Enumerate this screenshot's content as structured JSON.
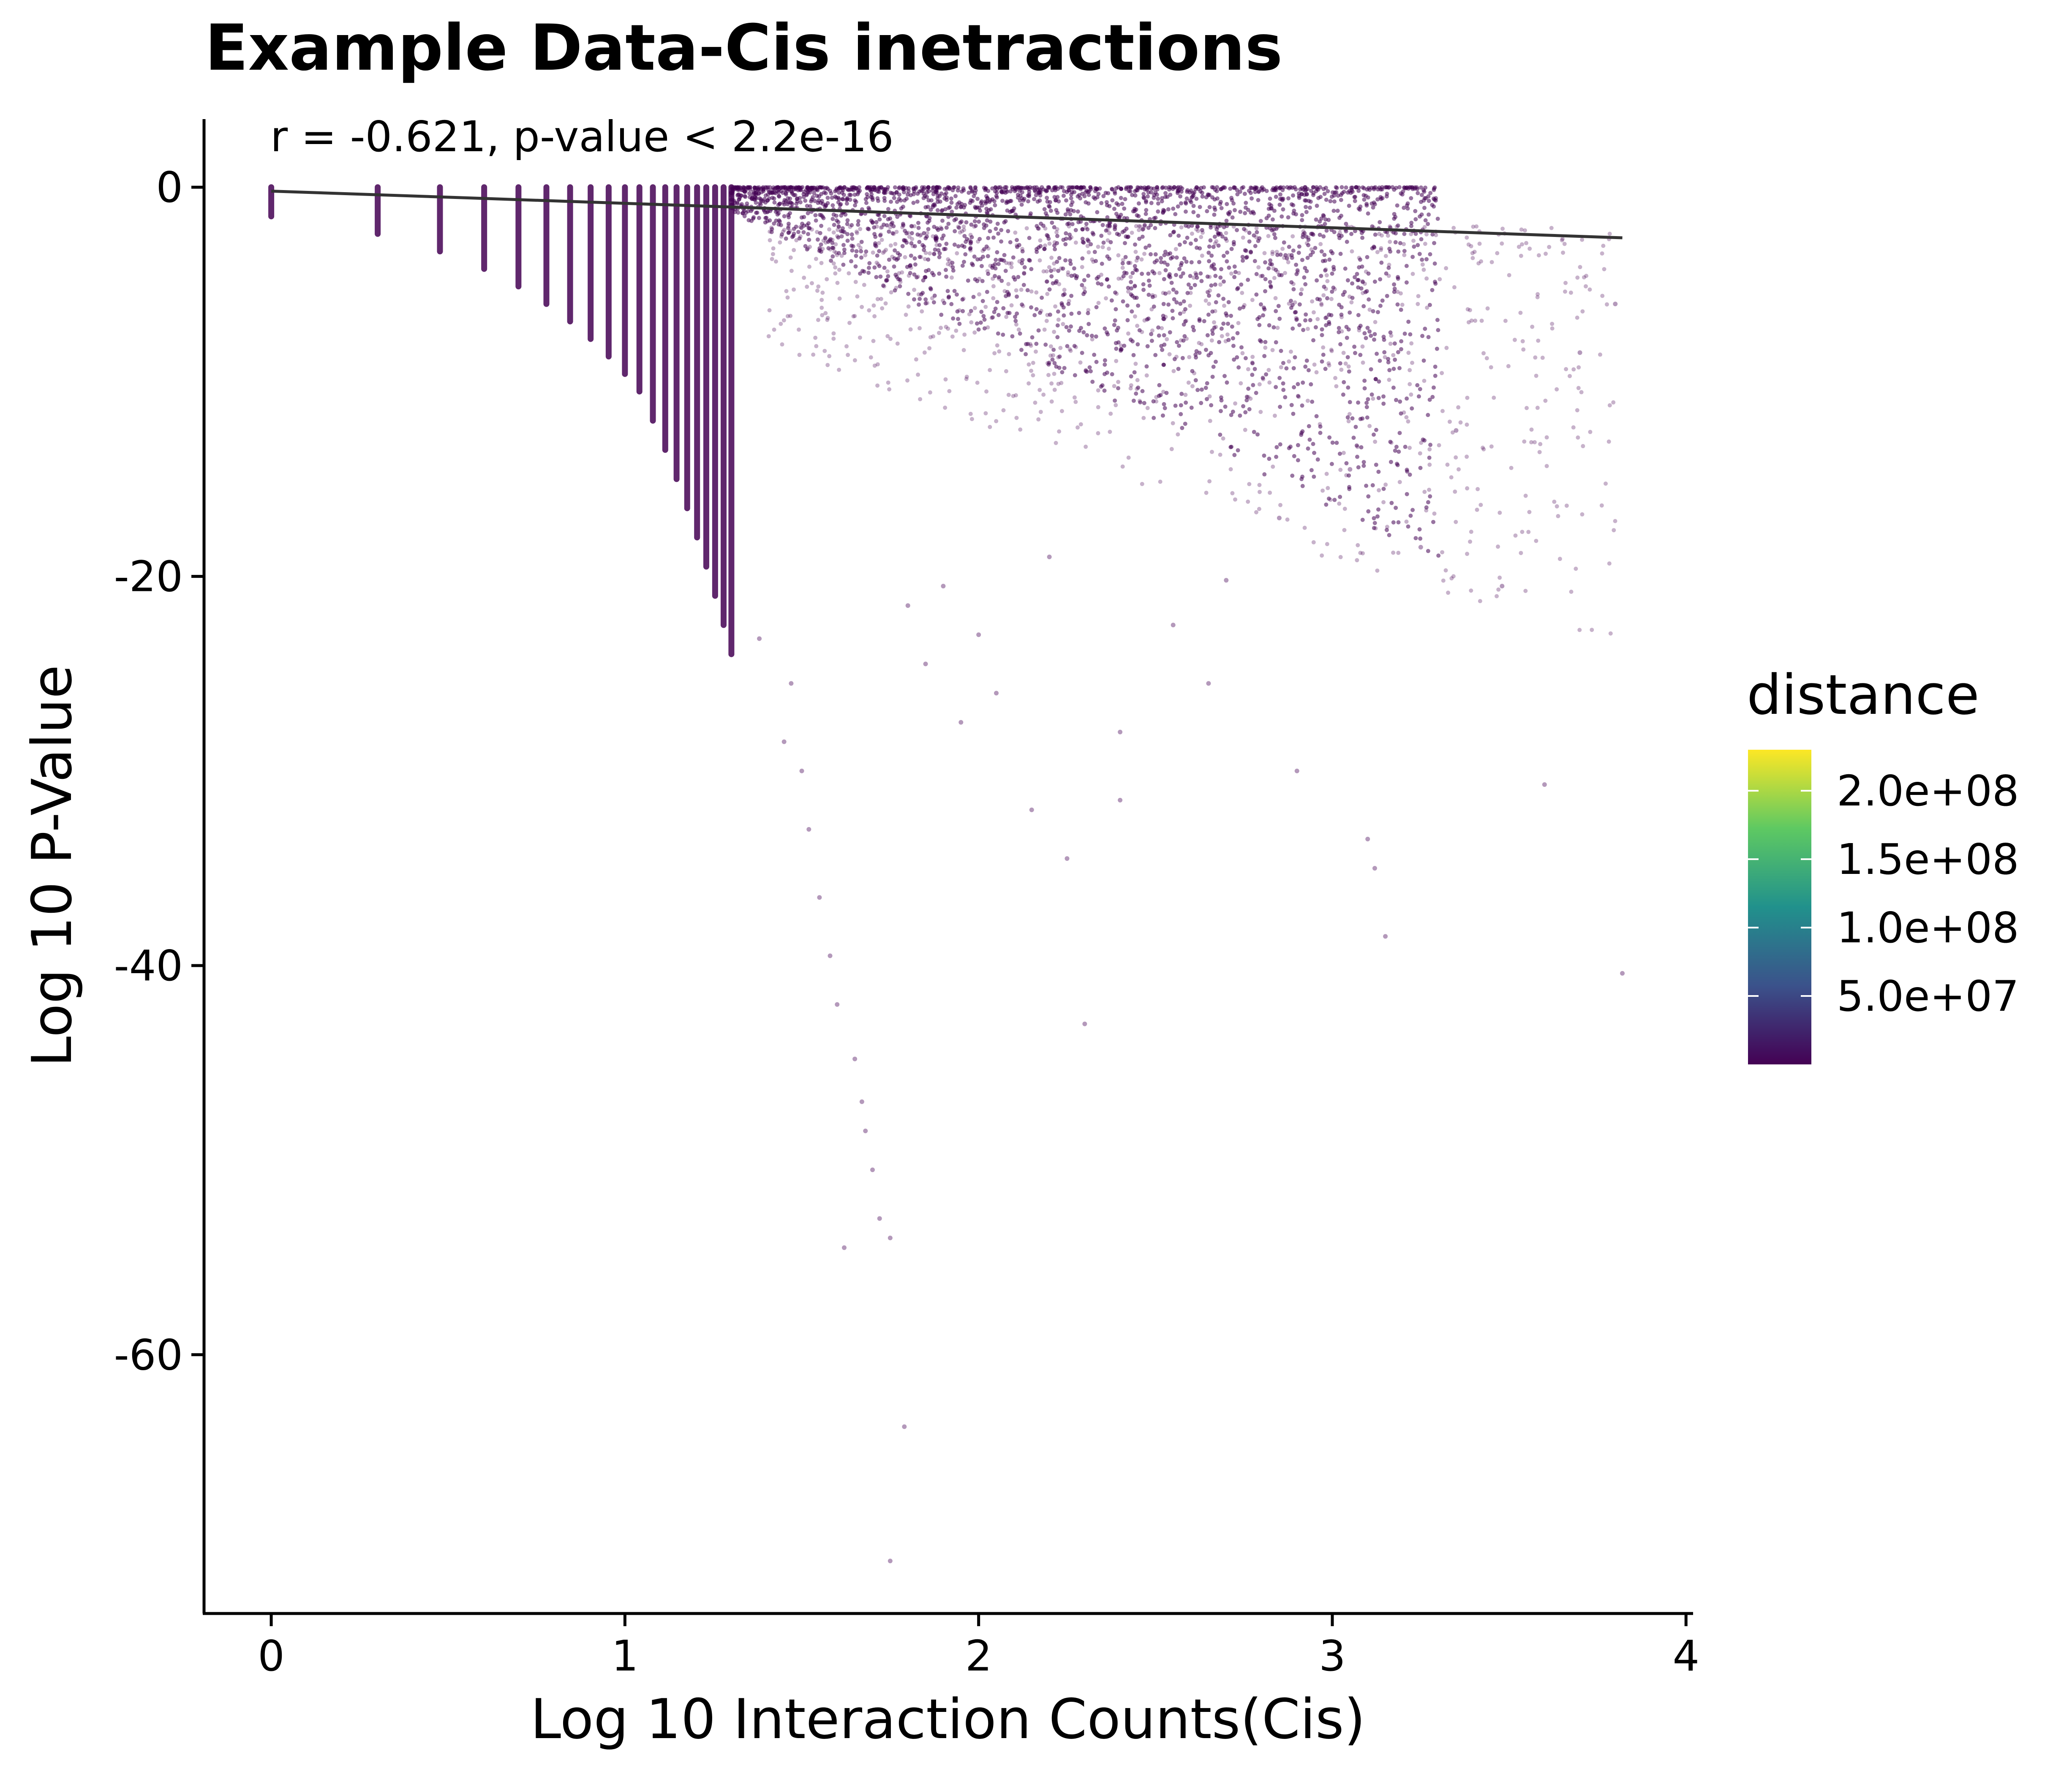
{
  "chart_data": {
    "type": "scatter",
    "title": "Example Data-Cis inetractions",
    "annotation": "r = -0.621, p-value < 2.2e-16",
    "xlabel": "Log 10 Interaction Counts(Cis)",
    "ylabel": "Log 10 P-Value",
    "xlim": [
      -0.19,
      4.02
    ],
    "ylim": [
      -73.3,
      3.5
    ],
    "x_ticks": [
      0,
      1,
      2,
      3,
      4
    ],
    "x_tick_labels": [
      "0",
      "1",
      "2",
      "3",
      "4"
    ],
    "y_ticks": [
      0,
      -20,
      -40,
      -60
    ],
    "y_tick_labels": [
      "0",
      "-20",
      "-40",
      "-60"
    ],
    "grid": false,
    "regression_line": {
      "x": [
        0,
        3.82
      ],
      "y": [
        -0.2,
        -2.6
      ],
      "color": "#333333"
    },
    "color_scale": {
      "name": "distance",
      "palette": "viridis",
      "range": [
        0,
        230000000.0
      ],
      "ticks": [
        50000000.0,
        100000000.0,
        150000000.0,
        200000000.0
      ],
      "tick_labels": [
        "5.0e+07",
        "1.0e+08",
        "1.5e+08",
        "2.0e+08"
      ],
      "colors": [
        "#440154",
        "#3b528b",
        "#21918c",
        "#5ec962",
        "#fde725"
      ]
    },
    "legend_position": "right",
    "point_color": "#440154",
    "count_columns_x": [
      0,
      0.301,
      0.477,
      0.602,
      0.699,
      0.778,
      0.845,
      0.903,
      0.954,
      1.0,
      1.041,
      1.079,
      1.114,
      1.146,
      1.176,
      1.204,
      1.23,
      1.255,
      1.279,
      1.301
    ],
    "dense_band": {
      "x_range": [
        1.3,
        3.3
      ],
      "y_range": [
        0,
        -5
      ]
    },
    "sparse_points": [
      [
        1.47,
        -25.5
      ],
      [
        1.5,
        -30.0
      ],
      [
        1.55,
        -36.5
      ],
      [
        1.58,
        -39.5
      ],
      [
        1.6,
        -42.0
      ],
      [
        1.65,
        -44.8
      ],
      [
        1.67,
        -47.0
      ],
      [
        1.68,
        -48.5
      ],
      [
        1.7,
        -50.5
      ],
      [
        1.72,
        -53.0
      ],
      [
        1.62,
        -54.5
      ],
      [
        1.75,
        -54.0
      ],
      [
        1.79,
        -63.7
      ],
      [
        1.75,
        -70.6
      ],
      [
        1.38,
        -23.2
      ],
      [
        1.45,
        -28.5
      ],
      [
        1.52,
        -33.0
      ],
      [
        2.4,
        -31.5
      ],
      [
        2.15,
        -32.0
      ],
      [
        2.25,
        -34.5
      ],
      [
        2.3,
        -43.0
      ],
      [
        2.9,
        -30.0
      ],
      [
        3.1,
        -33.5
      ],
      [
        3.12,
        -35.0
      ],
      [
        3.15,
        -38.5
      ],
      [
        3.6,
        -30.7
      ],
      [
        3.82,
        -40.4
      ],
      [
        3.48,
        -20.5
      ],
      [
        2.7,
        -20.2
      ],
      [
        2.4,
        -28.0
      ],
      [
        1.95,
        -27.5
      ],
      [
        2.05,
        -26.0
      ],
      [
        1.85,
        -24.5
      ],
      [
        2.55,
        -22.5
      ],
      [
        3.25,
        -18.5
      ],
      [
        3.7,
        -8.5
      ],
      [
        3.8,
        -6.0
      ],
      [
        3.35,
        -12.5
      ],
      [
        3.05,
        -14.5
      ],
      [
        2.85,
        -17.0
      ],
      [
        2.2,
        -19.0
      ],
      [
        1.9,
        -20.5
      ],
      [
        2.65,
        -25.5
      ],
      [
        2.0,
        -23.0
      ],
      [
        1.8,
        -21.5
      ]
    ]
  }
}
